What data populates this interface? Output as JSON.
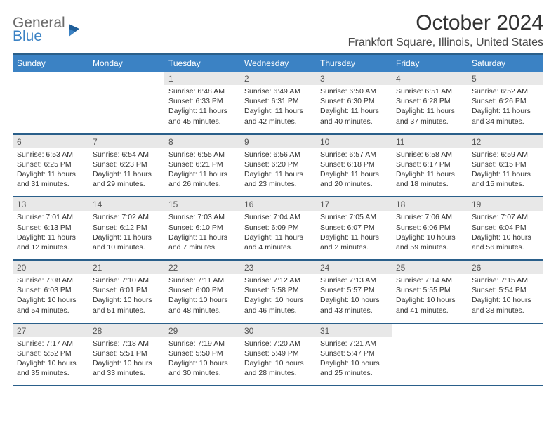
{
  "logo": {
    "text1": "General",
    "text2": "Blue"
  },
  "title": "October 2024",
  "location": "Frankfort Square, Illinois, United States",
  "colors": {
    "header_bg": "#3b82c4",
    "header_text": "#ffffff",
    "daynum_bg": "#e8e8e8",
    "border": "#2a5f8a",
    "body_text": "#333333",
    "logo_gray": "#6a6a6a",
    "logo_blue": "#3b82c4"
  },
  "typography": {
    "title_fontsize": 30,
    "location_fontsize": 16,
    "header_fontsize": 12,
    "daynum_fontsize": 12,
    "detail_fontsize": 10.5
  },
  "weekdays": [
    "Sunday",
    "Monday",
    "Tuesday",
    "Wednesday",
    "Thursday",
    "Friday",
    "Saturday"
  ],
  "weeks": [
    {
      "nums": [
        "",
        "",
        "1",
        "2",
        "3",
        "4",
        "5"
      ],
      "details": [
        "",
        "",
        "Sunrise: 6:48 AM\nSunset: 6:33 PM\nDaylight: 11 hours and 45 minutes.",
        "Sunrise: 6:49 AM\nSunset: 6:31 PM\nDaylight: 11 hours and 42 minutes.",
        "Sunrise: 6:50 AM\nSunset: 6:30 PM\nDaylight: 11 hours and 40 minutes.",
        "Sunrise: 6:51 AM\nSunset: 6:28 PM\nDaylight: 11 hours and 37 minutes.",
        "Sunrise: 6:52 AM\nSunset: 6:26 PM\nDaylight: 11 hours and 34 minutes."
      ]
    },
    {
      "nums": [
        "6",
        "7",
        "8",
        "9",
        "10",
        "11",
        "12"
      ],
      "details": [
        "Sunrise: 6:53 AM\nSunset: 6:25 PM\nDaylight: 11 hours and 31 minutes.",
        "Sunrise: 6:54 AM\nSunset: 6:23 PM\nDaylight: 11 hours and 29 minutes.",
        "Sunrise: 6:55 AM\nSunset: 6:21 PM\nDaylight: 11 hours and 26 minutes.",
        "Sunrise: 6:56 AM\nSunset: 6:20 PM\nDaylight: 11 hours and 23 minutes.",
        "Sunrise: 6:57 AM\nSunset: 6:18 PM\nDaylight: 11 hours and 20 minutes.",
        "Sunrise: 6:58 AM\nSunset: 6:17 PM\nDaylight: 11 hours and 18 minutes.",
        "Sunrise: 6:59 AM\nSunset: 6:15 PM\nDaylight: 11 hours and 15 minutes."
      ]
    },
    {
      "nums": [
        "13",
        "14",
        "15",
        "16",
        "17",
        "18",
        "19"
      ],
      "details": [
        "Sunrise: 7:01 AM\nSunset: 6:13 PM\nDaylight: 11 hours and 12 minutes.",
        "Sunrise: 7:02 AM\nSunset: 6:12 PM\nDaylight: 11 hours and 10 minutes.",
        "Sunrise: 7:03 AM\nSunset: 6:10 PM\nDaylight: 11 hours and 7 minutes.",
        "Sunrise: 7:04 AM\nSunset: 6:09 PM\nDaylight: 11 hours and 4 minutes.",
        "Sunrise: 7:05 AM\nSunset: 6:07 PM\nDaylight: 11 hours and 2 minutes.",
        "Sunrise: 7:06 AM\nSunset: 6:06 PM\nDaylight: 10 hours and 59 minutes.",
        "Sunrise: 7:07 AM\nSunset: 6:04 PM\nDaylight: 10 hours and 56 minutes."
      ]
    },
    {
      "nums": [
        "20",
        "21",
        "22",
        "23",
        "24",
        "25",
        "26"
      ],
      "details": [
        "Sunrise: 7:08 AM\nSunset: 6:03 PM\nDaylight: 10 hours and 54 minutes.",
        "Sunrise: 7:10 AM\nSunset: 6:01 PM\nDaylight: 10 hours and 51 minutes.",
        "Sunrise: 7:11 AM\nSunset: 6:00 PM\nDaylight: 10 hours and 48 minutes.",
        "Sunrise: 7:12 AM\nSunset: 5:58 PM\nDaylight: 10 hours and 46 minutes.",
        "Sunrise: 7:13 AM\nSunset: 5:57 PM\nDaylight: 10 hours and 43 minutes.",
        "Sunrise: 7:14 AM\nSunset: 5:55 PM\nDaylight: 10 hours and 41 minutes.",
        "Sunrise: 7:15 AM\nSunset: 5:54 PM\nDaylight: 10 hours and 38 minutes."
      ]
    },
    {
      "nums": [
        "27",
        "28",
        "29",
        "30",
        "31",
        "",
        ""
      ],
      "details": [
        "Sunrise: 7:17 AM\nSunset: 5:52 PM\nDaylight: 10 hours and 35 minutes.",
        "Sunrise: 7:18 AM\nSunset: 5:51 PM\nDaylight: 10 hours and 33 minutes.",
        "Sunrise: 7:19 AM\nSunset: 5:50 PM\nDaylight: 10 hours and 30 minutes.",
        "Sunrise: 7:20 AM\nSunset: 5:49 PM\nDaylight: 10 hours and 28 minutes.",
        "Sunrise: 7:21 AM\nSunset: 5:47 PM\nDaylight: 10 hours and 25 minutes.",
        "",
        ""
      ]
    }
  ]
}
